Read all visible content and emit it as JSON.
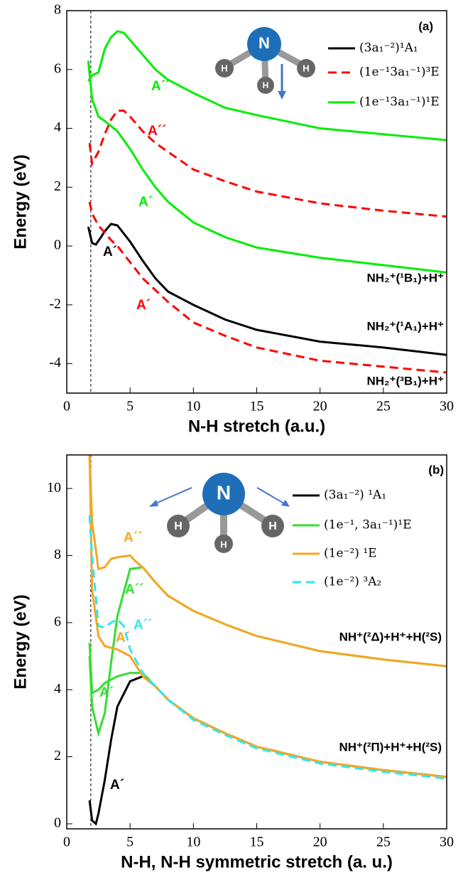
{
  "chart_data": [
    {
      "type": "line",
      "panel_label": "(a)",
      "x_label": "N-H stretch (a.u.)",
      "y_label": "Energy (eV)",
      "xlim": [
        0,
        30
      ],
      "xticks": [
        0,
        5,
        10,
        15,
        20,
        25,
        30
      ],
      "ylim": [
        -5,
        8
      ],
      "yticks": [
        -4,
        -2,
        0,
        2,
        4,
        6,
        8
      ],
      "vline": 1.9,
      "icon_labels": [
        "N",
        "H",
        "H",
        "H"
      ],
      "annotations": [
        "NH₂⁺(¹B₁)+H⁺",
        "NH₂⁺(¹A₁)+H⁺",
        "NH₂⁺(³B₁)+H⁺"
      ],
      "series": [
        {
          "name": "(3a₁⁻²)¹A₁",
          "color": "#000000",
          "dashed": false,
          "branches": [
            {
              "label": "A´",
              "x": [
                1.7,
                2,
                2.3,
                2.7,
                3,
                3.5,
                4,
                5,
                6,
                7,
                8,
                10,
                12.5,
                15,
                20,
                25,
                30
              ],
              "values": [
                0.65,
                0.1,
                0.05,
                0.3,
                0.5,
                0.75,
                0.7,
                0.15,
                -0.5,
                -1.1,
                -1.55,
                -2.0,
                -2.5,
                -2.85,
                -3.25,
                -3.45,
                -3.7
              ]
            }
          ]
        },
        {
          "name": "(1e⁻¹3a₁⁻¹)³E",
          "color": "#ff0000",
          "dashed": true,
          "branches": [
            {
              "label": "A´",
              "x": [
                1.8,
                2,
                2.5,
                3,
                3.5,
                4,
                5,
                6,
                7,
                8,
                10,
                12.5,
                15,
                20,
                25,
                30
              ],
              "values": [
                1.5,
                1.1,
                0.7,
                0.45,
                0.2,
                0.0,
                -0.55,
                -1.1,
                -1.5,
                -1.9,
                -2.6,
                -3.05,
                -3.45,
                -3.9,
                -4.1,
                -4.3
              ]
            },
            {
              "label": "A´´",
              "x": [
                1.8,
                2,
                2.5,
                3,
                3.5,
                4,
                4.5,
                5,
                6,
                7,
                8,
                10,
                12.5,
                15,
                20,
                25,
                30
              ],
              "values": [
                3.5,
                2.8,
                3.2,
                3.8,
                4.3,
                4.6,
                4.6,
                4.4,
                3.9,
                3.5,
                3.2,
                2.6,
                2.2,
                1.85,
                1.45,
                1.2,
                1.0
              ]
            }
          ]
        },
        {
          "name": "(1e⁻¹3a₁⁻¹)¹E",
          "color": "#00ee00",
          "dashed": false,
          "branches": [
            {
              "label": "A´",
              "x": [
                1.7,
                2,
                2.5,
                3,
                4,
                5,
                6,
                7,
                8,
                10,
                12.5,
                15,
                20,
                25,
                30
              ],
              "values": [
                6.3,
                5.0,
                4.4,
                4.25,
                3.9,
                3.3,
                2.6,
                2.0,
                1.5,
                0.8,
                0.3,
                -0.05,
                -0.4,
                -0.65,
                -0.9
              ]
            },
            {
              "label": "A´´",
              "x": [
                1.7,
                2,
                2.5,
                3,
                3.5,
                4,
                4.5,
                5,
                6,
                7,
                8,
                10,
                12.5,
                15,
                20,
                25,
                30
              ],
              "values": [
                5.6,
                5.8,
                5.9,
                6.7,
                7.1,
                7.3,
                7.25,
                7.0,
                6.5,
                6.0,
                5.65,
                5.2,
                4.7,
                4.45,
                4.0,
                3.8,
                3.6
              ]
            }
          ]
        }
      ]
    },
    {
      "type": "line",
      "panel_label": "(b)",
      "x_label": "N-H, N-H symmetric stretch (a. u.)",
      "y_label": "Energy (eV)",
      "xlim": [
        0,
        30
      ],
      "xticks": [
        0,
        5,
        10,
        15,
        20,
        25,
        30
      ],
      "ylim": [
        -0.15,
        11
      ],
      "yticks": [
        0,
        2,
        4,
        6,
        8,
        10
      ],
      "vline": 1.9,
      "icon_labels": [
        "N",
        "H",
        "H",
        "H"
      ],
      "annotations": [
        "NH⁺(²Δ)+H⁺+H(²S)",
        "NH⁺(²Π)+H⁺+H(²S)"
      ],
      "series": [
        {
          "name": "(3a₁⁻²) ¹A₁",
          "color": "#000000",
          "dashed": false,
          "branches": [
            {
              "label": "A´",
              "x": [
                1.8,
                2,
                2.3,
                2.5,
                3,
                3.5,
                4,
                5,
                6,
                7,
                8,
                10,
                12.5,
                15,
                20,
                25,
                30
              ],
              "values": [
                0.7,
                0.1,
                0.0,
                0.3,
                1.3,
                2.5,
                3.5,
                4.25,
                4.4,
                4.1,
                3.7,
                3.15,
                2.7,
                2.3,
                1.85,
                1.6,
                1.4
              ]
            }
          ]
        },
        {
          "name": "(1e⁻¹, 3a₁⁻¹)¹E",
          "color": "#33dd33",
          "dashed": false,
          "branches": [
            {
              "label": "A´",
              "x": [
                1.8,
                2,
                2.5,
                3,
                3.5,
                4,
                5,
                6,
                7,
                8,
                10,
                12.5,
                15,
                20,
                25,
                30
              ],
              "values": [
                5.4,
                3.9,
                4.0,
                4.2,
                4.3,
                4.4,
                4.5,
                4.5,
                4.1,
                3.7,
                3.15,
                2.7,
                2.3,
                1.85,
                1.6,
                1.4
              ]
            },
            {
              "label": "A´´",
              "x": [
                1.8,
                2,
                2.5,
                3,
                3.5,
                4,
                5,
                6,
                7,
                8,
                10,
                12.5,
                15,
                20,
                25,
                30
              ],
              "values": [
                5.0,
                3.5,
                2.7,
                3.3,
                4.8,
                6.2,
                7.6,
                7.65,
                7.2,
                6.8,
                6.35,
                5.95,
                5.6,
                5.15,
                4.9,
                4.7
              ]
            }
          ]
        },
        {
          "name": "(1e⁻²) ¹E",
          "color": "#f5a623",
          "dashed": false,
          "branches": [
            {
              "label": "A´",
              "x": [
                1.8,
                2,
                2.5,
                3,
                4,
                5,
                6,
                7,
                8,
                10,
                12.5,
                15,
                20,
                25,
                30
              ],
              "values": [
                11,
                7,
                5.6,
                5.3,
                5.2,
                5.0,
                4.4,
                4.1,
                3.7,
                3.15,
                2.7,
                2.3,
                1.85,
                1.6,
                1.4
              ]
            },
            {
              "label": "A´´",
              "x": [
                1.8,
                2,
                2.5,
                3,
                3.5,
                4,
                5,
                5.5,
                6,
                7,
                8,
                10,
                12.5,
                15,
                20,
                25,
                30
              ],
              "values": [
                11,
                9.0,
                7.6,
                7.65,
                7.9,
                7.95,
                8.0,
                7.8,
                7.65,
                7.2,
                6.8,
                6.35,
                5.95,
                5.6,
                5.15,
                4.9,
                4.7
              ]
            }
          ]
        },
        {
          "name": "(1e⁻²) ³A₂",
          "color": "#33e5f0",
          "dashed": true,
          "branches": [
            {
              "label": "A´´",
              "x": [
                1.8,
                2,
                2.5,
                3,
                3.5,
                4,
                4.5,
                5,
                6,
                7,
                8,
                10,
                12.5,
                15,
                20,
                25,
                30
              ],
              "values": [
                9.2,
                8.0,
                5.9,
                5.85,
                6.0,
                6.1,
                5.9,
                5.2,
                4.5,
                4.1,
                3.7,
                3.1,
                2.65,
                2.25,
                1.8,
                1.55,
                1.35
              ]
            }
          ]
        }
      ]
    }
  ]
}
